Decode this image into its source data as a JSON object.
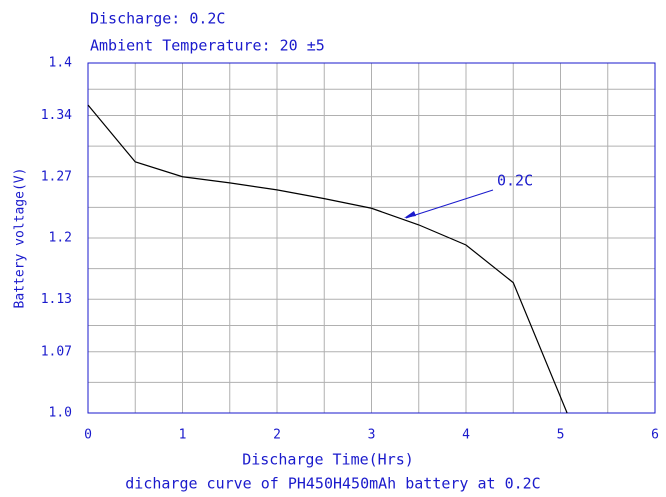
{
  "chart_data": {
    "type": "line",
    "title": "Discharge: 0.2C",
    "subtitle": "Ambient Temperature: 20  ±5",
    "xlabel": "Discharge Time(Hrs)",
    "ylabel": "Battery voltage(V)",
    "caption": "dicharge curve of PH450H450mAh battery at 0.2C",
    "annotation": "0.2C",
    "x": [
      0,
      0.5,
      1,
      1.5,
      2,
      2.5,
      3,
      3.5,
      4,
      4.5,
      5.07
    ],
    "series": [
      {
        "name": "0.2C",
        "color": "#000000",
        "values": [
          1.352,
          1.287,
          1.27,
          1.263,
          1.255,
          1.245,
          1.234,
          1.215,
          1.192,
          1.149,
          1.0
        ]
      }
    ],
    "xlim": [
      0,
      6
    ],
    "xticks": [
      0,
      1,
      2,
      3,
      4,
      5,
      6
    ],
    "ylim": [
      1.0,
      1.4
    ],
    "yticks": [
      {
        "value": 1.0,
        "label": "1.0"
      },
      1.07,
      1.13,
      1.2,
      1.27,
      1.34,
      1.4
    ],
    "grid": true
  }
}
